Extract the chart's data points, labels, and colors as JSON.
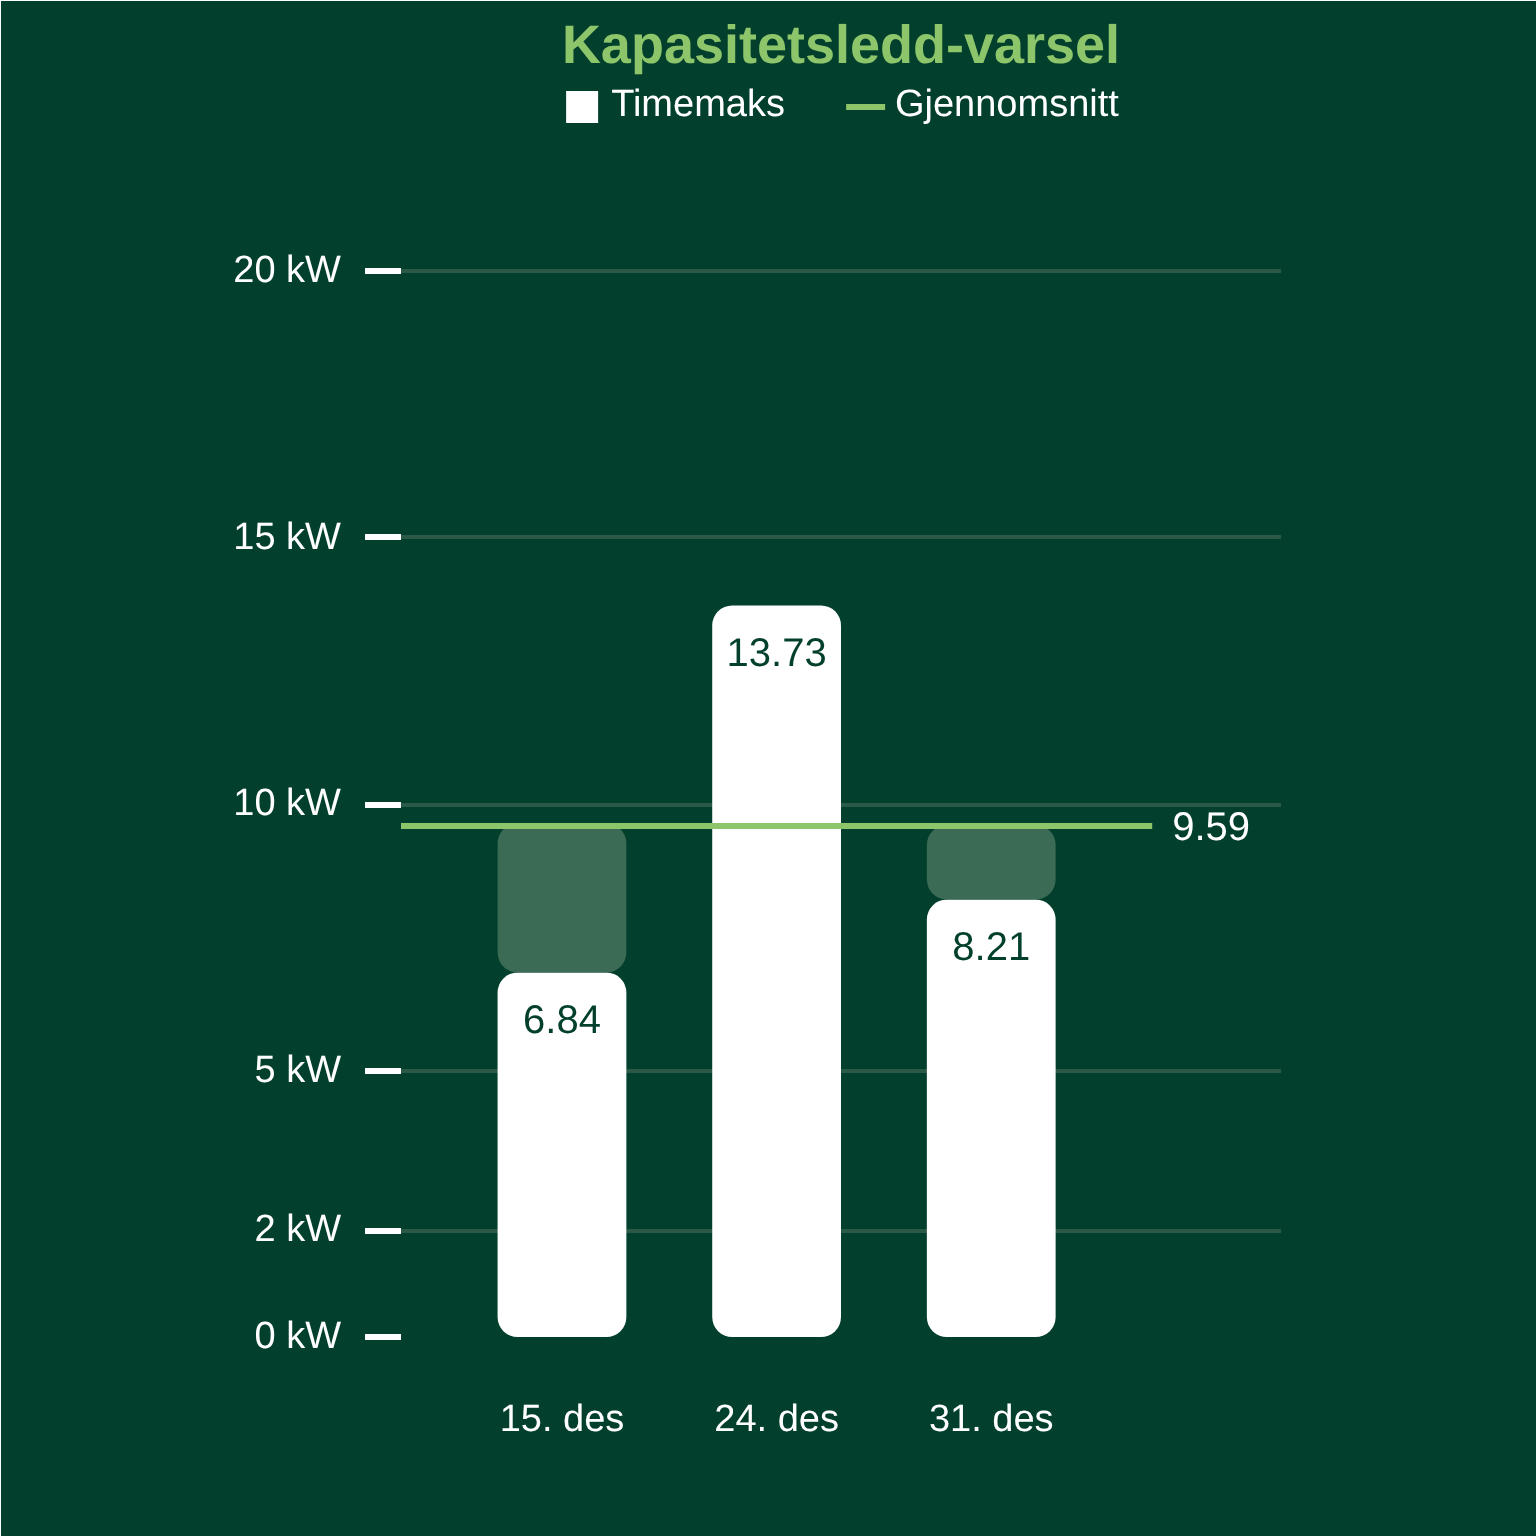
{
  "chart_data": {
    "type": "bar",
    "title": "Kapasitetsledd-varsel",
    "categories": [
      "15. des",
      "24. des",
      "31. des"
    ],
    "stacked": true,
    "series": [
      {
        "name": "Timemaks",
        "color": "#ffffff",
        "values": [
          6.84,
          13.73,
          8.21
        ],
        "value_labels": [
          "6.84",
          "13.73",
          "8.21"
        ]
      },
      {
        "color": "#3b6a55",
        "values": [
          2.8,
          null,
          1.4
        ]
      }
    ],
    "ylim": [
      0,
      23.5
    ],
    "yticks": [
      {
        "value": 0,
        "label": "0 kW"
      },
      {
        "value": 2,
        "label": "2 kW"
      },
      {
        "value": 5,
        "label": "5 kW"
      },
      {
        "value": 10,
        "label": "10 kW"
      },
      {
        "value": 15,
        "label": "15 kW"
      },
      {
        "value": 20,
        "label": "20 kW"
      }
    ],
    "ref_lines": [
      {
        "axis": "y",
        "value": 9.59,
        "label": "Gjennomsnitt",
        "color": "#8cc56a"
      }
    ],
    "annotations": [
      "9.59"
    ],
    "grid": "y",
    "legend": "top"
  }
}
